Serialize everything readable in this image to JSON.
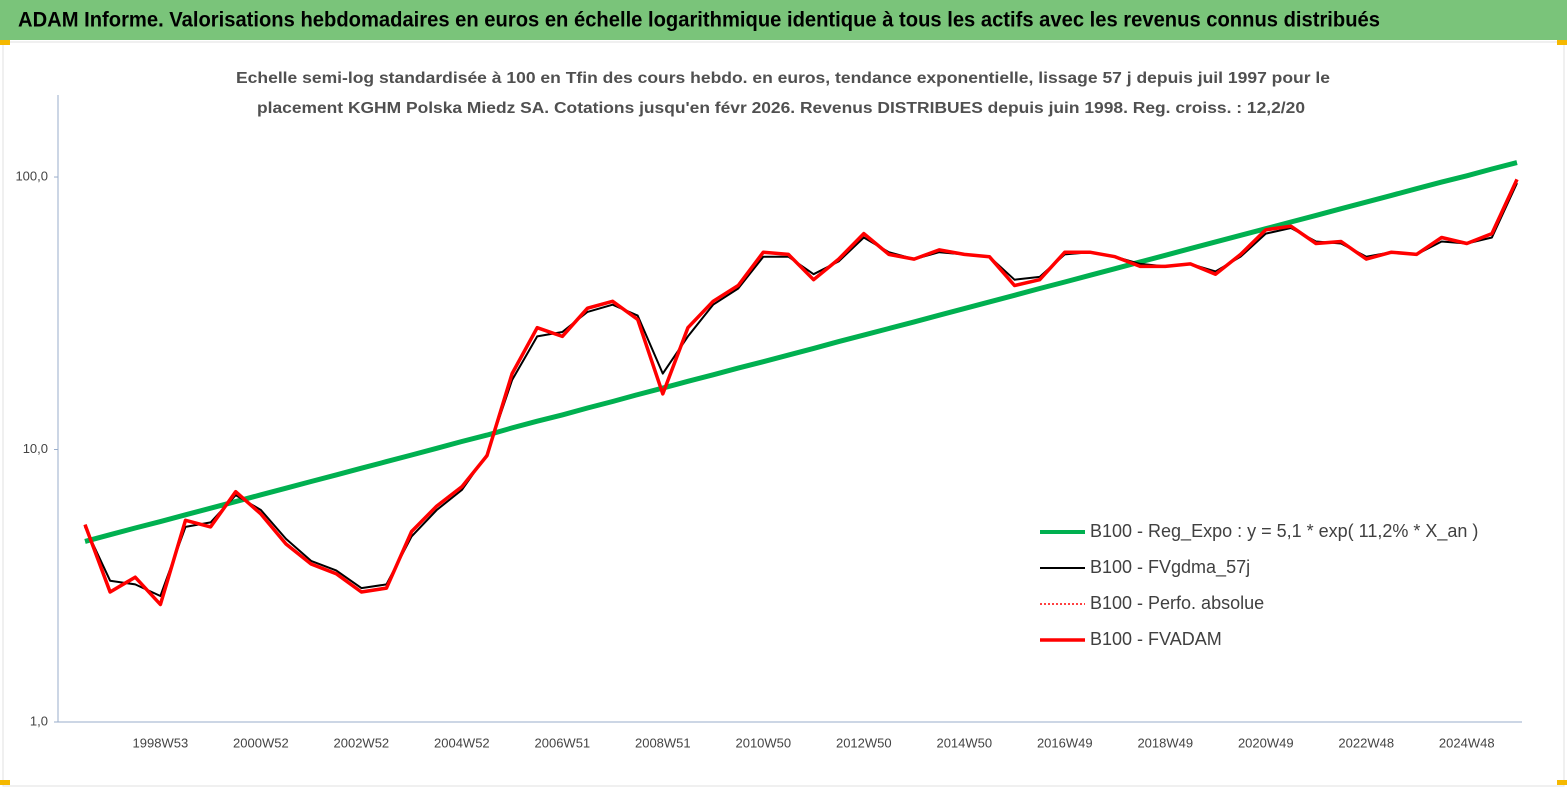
{
  "chart_data": {
    "type": "line",
    "title": "ADAM Informe. Valorisations hebdomadaires en euros en échelle logarithmique identique à tous les actifs avec les revenus connus distribués",
    "subtitle": [
      "Echelle semi-log standardisée à 100 en Tfin des cours hebdo. en euros, tendance exponentielle, lissage 57 j depuis juil 1997 pour le",
      "placement KGHM Polska Miedz SA. Cotations jusqu'en févr 2026. Revenus DISTRIBUES depuis juin 1998. Reg. croiss. : 12,2/20"
    ],
    "log_scale": true,
    "ylim": [
      1,
      200
    ],
    "yticks": [
      {
        "value": 1,
        "label": "1,0"
      },
      {
        "value": 10,
        "label": "10,0"
      },
      {
        "value": 100,
        "label": "100,0"
      }
    ],
    "categories": [
      null,
      null,
      null,
      "1998W53",
      null,
      null,
      null,
      "2000W52",
      null,
      null,
      null,
      "2002W52",
      null,
      null,
      null,
      "2004W52",
      null,
      null,
      null,
      "2006W51",
      null,
      null,
      null,
      "2008W51",
      null,
      null,
      null,
      "2010W50",
      null,
      null,
      null,
      "2012W50",
      null,
      null,
      null,
      "2014W50",
      null,
      null,
      null,
      "2016W49",
      null,
      null,
      null,
      "2018W49",
      null,
      null,
      null,
      "2020W49",
      null,
      null,
      null,
      "2022W48",
      null,
      null,
      null,
      "2024W48",
      null,
      null
    ],
    "series": [
      {
        "name": "B100 - Reg_Expo : y = 5,1 * exp( 11,2% *  X_an )",
        "color": "#00b050",
        "width": 5,
        "dash": "none",
        "values": [
          4.6,
          4.87,
          5.15,
          5.44,
          5.76,
          6.09,
          6.44,
          6.82,
          7.21,
          7.63,
          8.07,
          8.54,
          9.03,
          9.55,
          10.1,
          10.7,
          11.3,
          12.0,
          12.7,
          13.4,
          14.2,
          15.0,
          15.9,
          16.8,
          17.8,
          18.8,
          19.9,
          21.0,
          22.2,
          23.5,
          24.9,
          26.3,
          27.8,
          29.4,
          31.1,
          32.9,
          34.8,
          36.8,
          39.0,
          41.2,
          43.6,
          46.1,
          48.8,
          51.6,
          54.6,
          57.8,
          61.1,
          64.6,
          68.4,
          72.3,
          76.5,
          80.9,
          85.6,
          90.6,
          95.8,
          101,
          107,
          113
        ]
      },
      {
        "name": "B100 - FVgdma_57j",
        "color": "#000000",
        "width": 2,
        "dash": "none",
        "values": [
          5.2,
          3.3,
          3.2,
          2.9,
          5.2,
          5.4,
          6.8,
          6.0,
          4.7,
          3.9,
          3.6,
          3.1,
          3.2,
          4.8,
          6.0,
          7.1,
          9.6,
          18,
          26,
          27,
          32,
          34,
          31,
          19,
          26,
          34,
          39,
          51,
          51,
          44,
          49,
          60,
          53,
          50,
          53,
          52,
          51,
          42,
          43,
          52,
          53,
          51,
          48,
          47,
          48,
          45,
          51,
          62,
          65,
          58,
          57,
          51,
          53,
          52,
          58,
          57,
          60,
          95
        ]
      },
      {
        "name": "B100 - Perfo. absolue",
        "color": "#ff0000",
        "width": 1.5,
        "dash": "2 2",
        "values": [
          5.3,
          3.0,
          3.4,
          2.7,
          5.5,
          5.2,
          7.0,
          5.8,
          4.5,
          3.8,
          3.5,
          3.0,
          3.1,
          5.0,
          6.2,
          7.3,
          9.5,
          19,
          28,
          26,
          33,
          35,
          30,
          16,
          28,
          35,
          40,
          53,
          52,
          42,
          50,
          62,
          52,
          50,
          54,
          52,
          51,
          40,
          42,
          53,
          53,
          51,
          47,
          47,
          48,
          44,
          52,
          64,
          66,
          57,
          58,
          50,
          53,
          52,
          60,
          57,
          62,
          98
        ]
      },
      {
        "name": "B100 - FVADAM",
        "color": "#ff0000",
        "width": 3.5,
        "dash": "none",
        "values": [
          5.3,
          3.0,
          3.4,
          2.7,
          5.5,
          5.2,
          7.0,
          5.8,
          4.5,
          3.8,
          3.5,
          3.0,
          3.1,
          5.0,
          6.2,
          7.3,
          9.5,
          19,
          28,
          26,
          33,
          35,
          30,
          16,
          28,
          35,
          40,
          53,
          52,
          42,
          50,
          62,
          52,
          50,
          54,
          52,
          51,
          40,
          42,
          53,
          53,
          51,
          47,
          47,
          48,
          44,
          52,
          64,
          66,
          57,
          58,
          50,
          53,
          52,
          60,
          57,
          62,
          98
        ]
      }
    ]
  }
}
